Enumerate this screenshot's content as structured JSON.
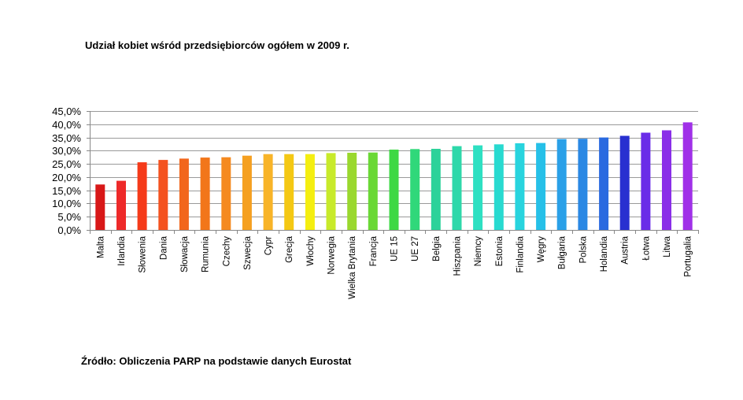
{
  "title": "Udział kobiet wśród przedsiębiorców ogółem w 2009 r.",
  "source": "Źródło: Obliczenia PARP na podstawie danych Eurostat",
  "chart_data": {
    "type": "bar",
    "title": "Udział kobiet wśród przedsiębiorców ogółem w 2009 r.",
    "xlabel": "",
    "ylabel": "",
    "ylim": [
      0,
      45
    ],
    "yticks": [
      0,
      5,
      10,
      15,
      20,
      25,
      30,
      35,
      40,
      45
    ],
    "ytick_labels": [
      "0,0%",
      "5,0%",
      "10,0%",
      "15,0%",
      "20,0%",
      "25,0%",
      "30,0%",
      "35,0%",
      "40,0%",
      "45,0%"
    ],
    "grid": true,
    "legend": "none",
    "categories": [
      "Malta",
      "Irlandia",
      "Słowenia",
      "Dania",
      "Słowacja",
      "Rumunia",
      "Czechy",
      "Szwecja",
      "Cypr",
      "Grecja",
      "Włochy",
      "Norwegia",
      "Wielka Brytania",
      "Francja",
      "UE 15",
      "UE 27",
      "Belgia",
      "Hiszpania",
      "Niemcy",
      "Estonia",
      "Finlandia",
      "Węgry",
      "Bułgaria",
      "Polska",
      "Holandia",
      "Austria",
      "Łotwa",
      "Litwa",
      "Portugalia"
    ],
    "values": [
      17.2,
      18.6,
      25.6,
      26.5,
      27.0,
      27.4,
      27.5,
      28.1,
      28.7,
      28.7,
      28.7,
      29.1,
      29.2,
      29.3,
      30.4,
      30.6,
      30.7,
      31.7,
      32.0,
      32.4,
      32.8,
      32.9,
      34.4,
      34.5,
      35.0,
      35.6,
      36.8,
      37.7,
      40.7
    ],
    "colors": [
      "#d81818",
      "#ee2a2a",
      "#f53a1a",
      "#f4521f",
      "#f2661c",
      "#f2761a",
      "#f58a20",
      "#f5a020",
      "#f8b428",
      "#f4c814",
      "#f4ee10",
      "#c8ea2a",
      "#9ad82e",
      "#6ad835",
      "#3ed844",
      "#30d87a",
      "#2cd29a",
      "#2ed8aa",
      "#2ee0c2",
      "#28dad0",
      "#28d4de",
      "#26c0e8",
      "#2aa0e8",
      "#2a88e4",
      "#2a6ae0",
      "#2830d0",
      "#6a2ce8",
      "#8a2ee8",
      "#a030e8"
    ]
  }
}
